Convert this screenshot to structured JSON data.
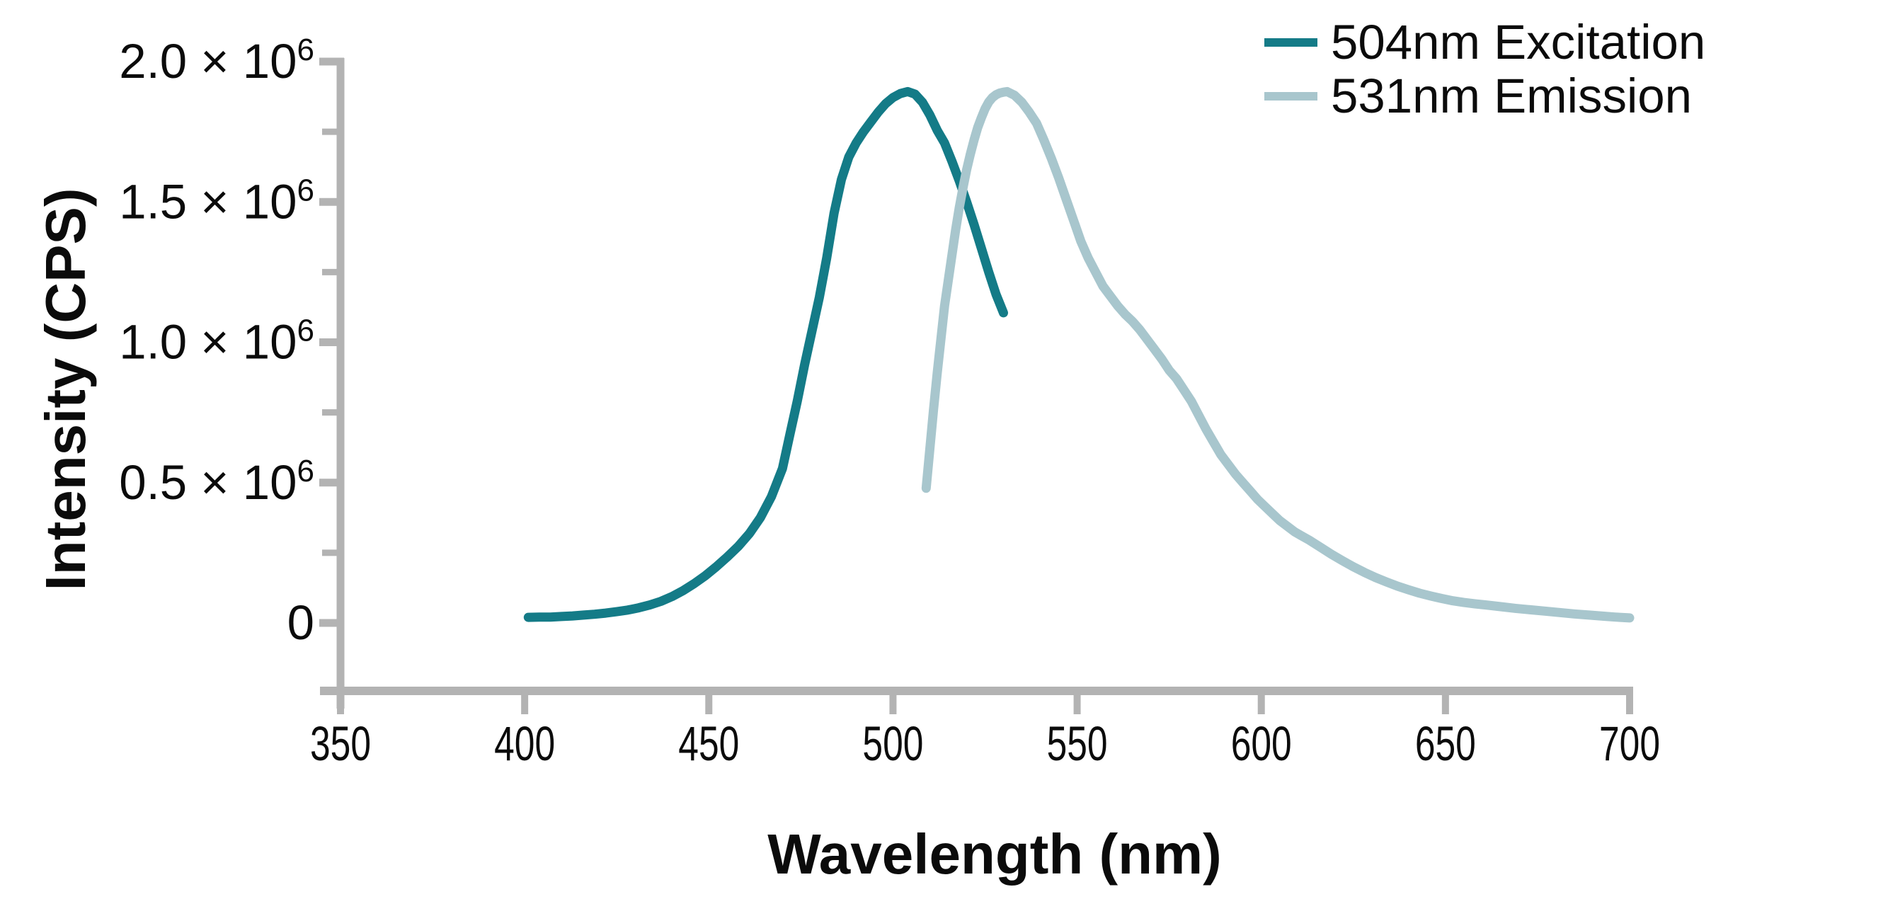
{
  "chart_data": {
    "type": "line",
    "title": "",
    "xlabel": "Wavelength (nm)",
    "ylabel": "Intensity (CPS)",
    "xlim": [
      350,
      700
    ],
    "ylim": [
      0,
      2000000
    ],
    "grid": false,
    "legend_position": "top-right",
    "axis_color": "#b3b3b3",
    "text_color": "#0b0b0b",
    "x_ticks": [
      350,
      400,
      450,
      500,
      550,
      600,
      650,
      700
    ],
    "y_ticks_major": [
      {
        "value": 0,
        "mantissa": "0",
        "exponent": ""
      },
      {
        "value": 500000,
        "mantissa": "0.5 × 10",
        "exponent": "6"
      },
      {
        "value": 1000000,
        "mantissa": "1.0 × 10",
        "exponent": "6"
      },
      {
        "value": 1500000,
        "mantissa": "1.5 × 10",
        "exponent": "6"
      },
      {
        "value": 2000000,
        "mantissa": "2.0 × 10",
        "exponent": "6"
      }
    ],
    "y_minor_tick_values": [
      250000,
      750000,
      1250000,
      1750000
    ],
    "series": [
      {
        "name": "504nm Excitation",
        "color": "#147b87",
        "peak_nm": 504,
        "peak_intensity_cps": 1893000,
        "points": [
          [
            401,
            20000
          ],
          [
            404,
            21000
          ],
          [
            407,
            21000
          ],
          [
            410,
            23000
          ],
          [
            413,
            25000
          ],
          [
            416,
            28000
          ],
          [
            419,
            31000
          ],
          [
            422,
            35000
          ],
          [
            425,
            40000
          ],
          [
            428,
            46000
          ],
          [
            431,
            54000
          ],
          [
            434,
            64000
          ],
          [
            437,
            77000
          ],
          [
            440,
            94000
          ],
          [
            443,
            115000
          ],
          [
            446,
            140000
          ],
          [
            449,
            168000
          ],
          [
            452,
            200000
          ],
          [
            455,
            235000
          ],
          [
            458,
            273000
          ],
          [
            461,
            318000
          ],
          [
            464,
            375000
          ],
          [
            467,
            450000
          ],
          [
            470,
            550000
          ],
          [
            472,
            670000
          ],
          [
            474,
            790000
          ],
          [
            476,
            920000
          ],
          [
            478,
            1040000
          ],
          [
            480,
            1160000
          ],
          [
            482,
            1300000
          ],
          [
            484,
            1460000
          ],
          [
            486,
            1580000
          ],
          [
            488,
            1660000
          ],
          [
            490,
            1710000
          ],
          [
            492,
            1750000
          ],
          [
            494,
            1785000
          ],
          [
            496,
            1820000
          ],
          [
            498,
            1850000
          ],
          [
            500,
            1872000
          ],
          [
            502,
            1886000
          ],
          [
            504,
            1893000
          ],
          [
            506,
            1884000
          ],
          [
            508,
            1855000
          ],
          [
            510,
            1810000
          ],
          [
            512,
            1755000
          ],
          [
            514,
            1710000
          ],
          [
            516,
            1645000
          ],
          [
            518,
            1575000
          ],
          [
            520,
            1500000
          ],
          [
            522,
            1420000
          ],
          [
            524,
            1335000
          ],
          [
            526,
            1250000
          ],
          [
            528,
            1170000
          ],
          [
            530,
            1105000
          ]
        ]
      },
      {
        "name": "531nm Emission",
        "color": "#a8c6cd",
        "peak_nm": 531,
        "peak_intensity_cps": 1893000,
        "points": [
          [
            509,
            480000
          ],
          [
            510,
            620000
          ],
          [
            511,
            760000
          ],
          [
            512,
            890000
          ],
          [
            513,
            1010000
          ],
          [
            514,
            1130000
          ],
          [
            515,
            1220000
          ],
          [
            516,
            1310000
          ],
          [
            517,
            1400000
          ],
          [
            518,
            1480000
          ],
          [
            519,
            1550000
          ],
          [
            520,
            1615000
          ],
          [
            521,
            1670000
          ],
          [
            522,
            1720000
          ],
          [
            523,
            1765000
          ],
          [
            524,
            1800000
          ],
          [
            525,
            1832000
          ],
          [
            526,
            1856000
          ],
          [
            527,
            1872000
          ],
          [
            528,
            1882000
          ],
          [
            529,
            1888000
          ],
          [
            530,
            1891000
          ],
          [
            531,
            1893000
          ],
          [
            533,
            1880000
          ],
          [
            535,
            1855000
          ],
          [
            537,
            1820000
          ],
          [
            539,
            1780000
          ],
          [
            541,
            1720000
          ],
          [
            543,
            1655000
          ],
          [
            545,
            1585000
          ],
          [
            547,
            1510000
          ],
          [
            549,
            1435000
          ],
          [
            551,
            1360000
          ],
          [
            553,
            1300000
          ],
          [
            555,
            1250000
          ],
          [
            557,
            1200000
          ],
          [
            559,
            1165000
          ],
          [
            561,
            1130000
          ],
          [
            563,
            1100000
          ],
          [
            565,
            1075000
          ],
          [
            567,
            1045000
          ],
          [
            569,
            1010000
          ],
          [
            571,
            975000
          ],
          [
            573,
            940000
          ],
          [
            575,
            900000
          ],
          [
            577,
            870000
          ],
          [
            579,
            830000
          ],
          [
            581,
            790000
          ],
          [
            583,
            740000
          ],
          [
            585,
            690000
          ],
          [
            587,
            645000
          ],
          [
            589,
            600000
          ],
          [
            591,
            565000
          ],
          [
            593,
            530000
          ],
          [
            595,
            500000
          ],
          [
            597,
            470000
          ],
          [
            599,
            440000
          ],
          [
            601,
            415000
          ],
          [
            603,
            390000
          ],
          [
            605,
            365000
          ],
          [
            607,
            345000
          ],
          [
            609,
            325000
          ],
          [
            611,
            310000
          ],
          [
            613,
            295000
          ],
          [
            616,
            270000
          ],
          [
            619,
            245000
          ],
          [
            622,
            222000
          ],
          [
            625,
            200000
          ],
          [
            628,
            180000
          ],
          [
            631,
            162000
          ],
          [
            634,
            146000
          ],
          [
            637,
            131000
          ],
          [
            640,
            118000
          ],
          [
            643,
            106000
          ],
          [
            646,
            96000
          ],
          [
            649,
            87000
          ],
          [
            652,
            79000
          ],
          [
            655,
            73000
          ],
          [
            658,
            68000
          ],
          [
            661,
            64000
          ],
          [
            665,
            58000
          ],
          [
            669,
            52000
          ],
          [
            673,
            47000
          ],
          [
            677,
            42000
          ],
          [
            681,
            37000
          ],
          [
            685,
            32000
          ],
          [
            689,
            28000
          ],
          [
            693,
            24000
          ],
          [
            696,
            21000
          ],
          [
            700,
            18000
          ]
        ]
      }
    ]
  },
  "legend": {
    "items": [
      {
        "label": "504nm Excitation",
        "color": "#147b87"
      },
      {
        "label": "531nm Emission",
        "color": "#a8c6cd"
      }
    ]
  }
}
